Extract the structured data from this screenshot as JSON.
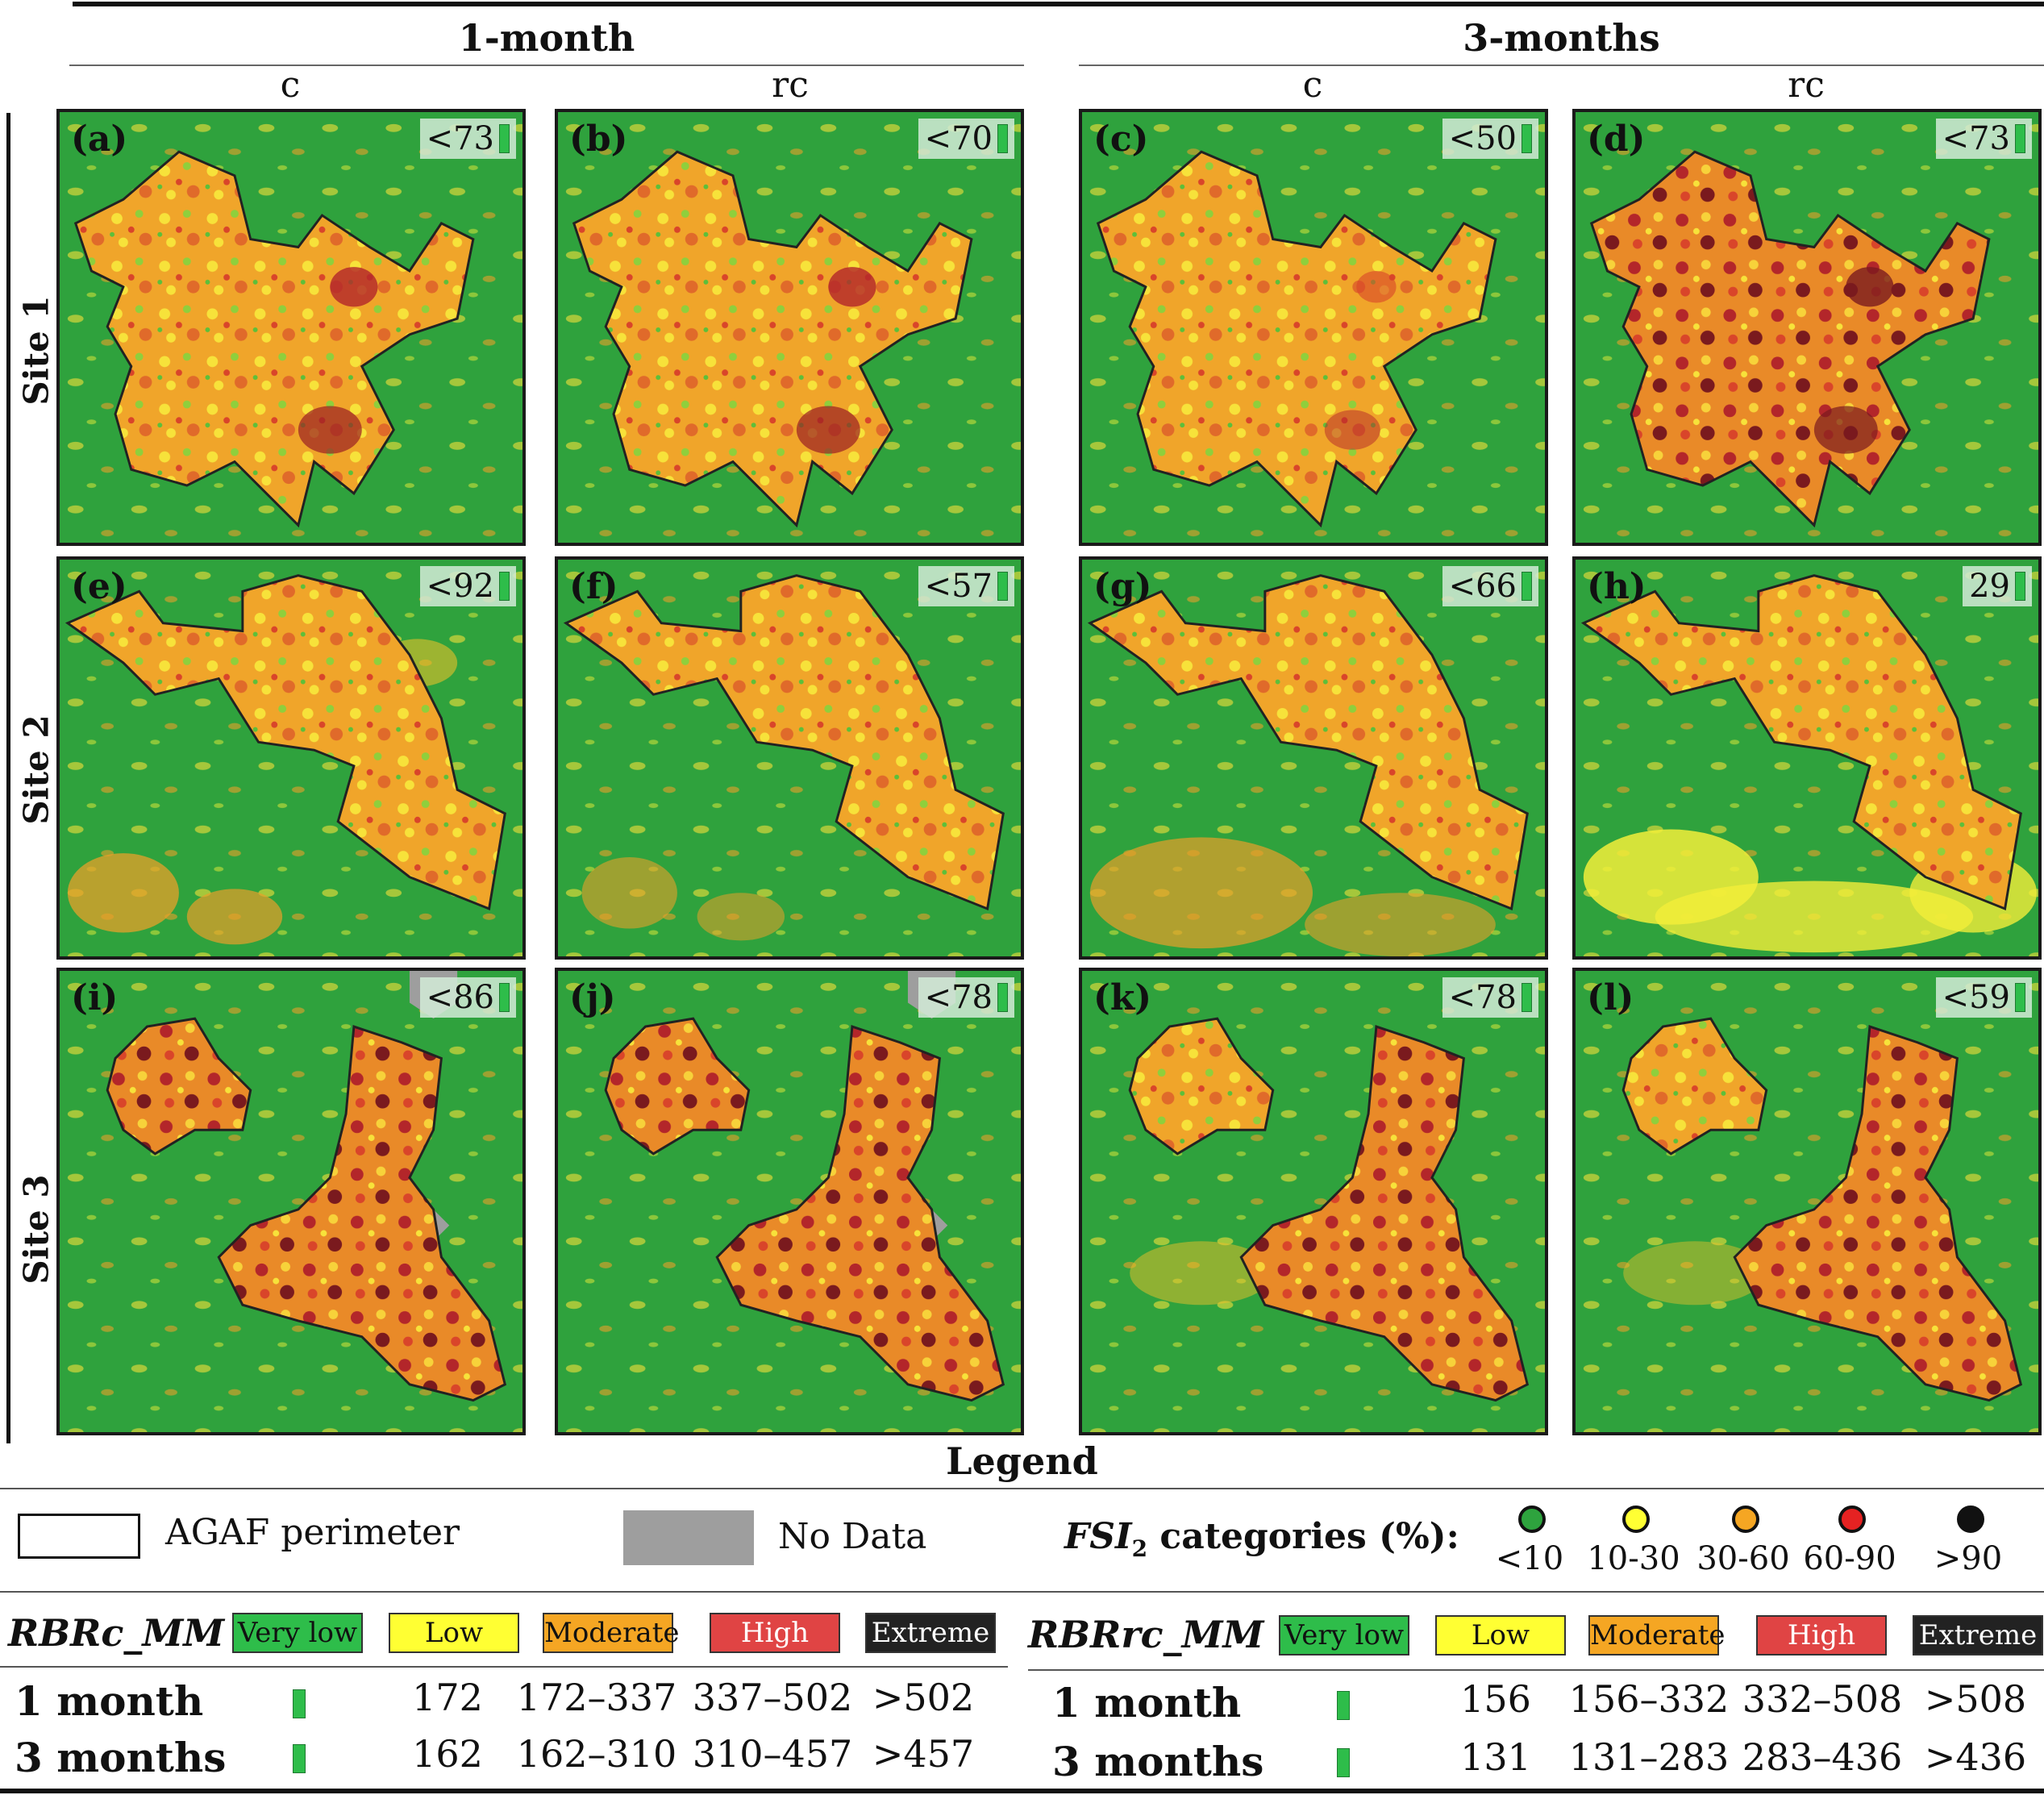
{
  "headers": {
    "group_1": "1-month",
    "group_2": "3-months",
    "columns": [
      "c",
      "rc",
      "c",
      "rc"
    ]
  },
  "sites": [
    "Site 1",
    "Site 2",
    "Site 3"
  ],
  "panels": [
    {
      "label": "(a)",
      "badge": "<73"
    },
    {
      "label": "(b)",
      "badge": "<70"
    },
    {
      "label": "(c)",
      "badge": "<50"
    },
    {
      "label": "(d)",
      "badge": "<73"
    },
    {
      "label": "(e)",
      "badge": "<92"
    },
    {
      "label": "(f)",
      "badge": "<57"
    },
    {
      "label": "(g)",
      "badge": "<66"
    },
    {
      "label": "(h)",
      "badge": "29"
    },
    {
      "label": "(i)",
      "badge": "<86"
    },
    {
      "label": "(j)",
      "badge": "<78"
    },
    {
      "label": "(k)",
      "badge": "<78"
    },
    {
      "label": "(l)",
      "badge": "<59"
    }
  ],
  "legend": {
    "title": "Legend",
    "perimeter": "AGAF perimeter",
    "no_data": "No Data",
    "fsi_title": "FSI",
    "fsi_sub": "2",
    "fsi_suffix": " categories (%):",
    "fsi_categories": [
      {
        "label": "<10",
        "color": "#2ea33e"
      },
      {
        "label": "10-30",
        "color": "#ffff33"
      },
      {
        "label": "30-60",
        "color": "#f5a623"
      },
      {
        "label": "60-90",
        "color": "#e52222"
      },
      {
        "label": ">90",
        "color": "#111111"
      }
    ],
    "classes": [
      "Very low",
      "Low",
      "Moderate",
      "High",
      "Extreme"
    ],
    "class_colors": [
      "#2ebd4a",
      "#ffff33",
      "#f5a623",
      "#e04444",
      "#222222"
    ],
    "rbrc": {
      "name": "RBRc_MM",
      "rows": [
        {
          "label": "1 month",
          "values": [
            "172",
            "172–337",
            "337–502",
            ">502"
          ]
        },
        {
          "label": "3 months",
          "values": [
            "162",
            "162–310",
            "310–457",
            ">457"
          ]
        }
      ]
    },
    "rbrrc": {
      "name": "RBRrc_MM",
      "rows": [
        {
          "label": "1 month",
          "values": [
            "156",
            "156–332",
            "332–508",
            ">508"
          ]
        },
        {
          "label": "3 months",
          "values": [
            "131",
            "131–283",
            "283–436",
            ">436"
          ]
        }
      ]
    }
  }
}
